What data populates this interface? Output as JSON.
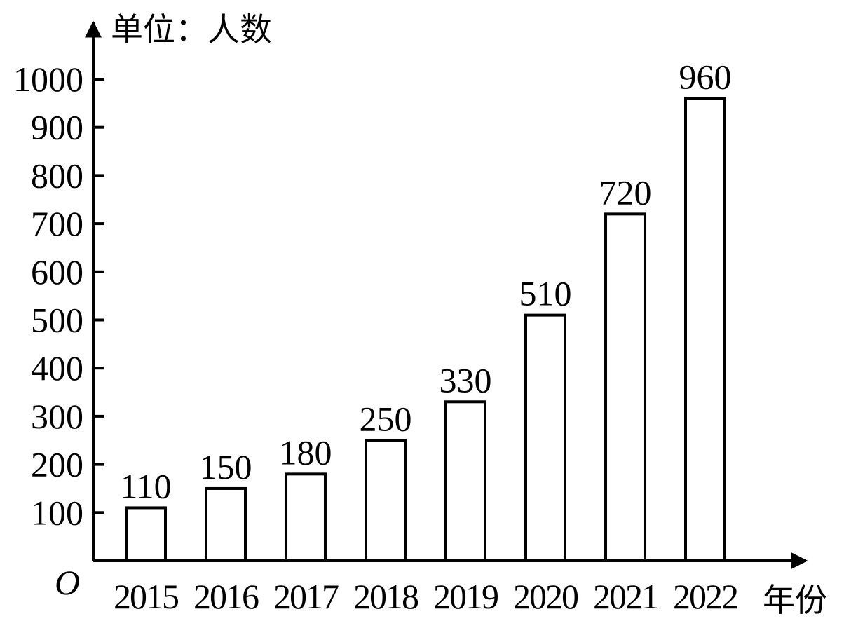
{
  "chart_data": {
    "type": "bar",
    "categories": [
      "2015",
      "2016",
      "2017",
      "2018",
      "2019",
      "2020",
      "2021",
      "2022"
    ],
    "values": [
      110,
      150,
      180,
      250,
      330,
      510,
      720,
      960
    ],
    "value_labels": [
      "110",
      "150",
      "180",
      "250",
      "330",
      "510",
      "720",
      "960"
    ],
    "ylabel": "单位：人数",
    "xlabel": "年份",
    "origin_label": "O",
    "ylim": [
      0,
      1000
    ],
    "yticks": [
      100,
      200,
      300,
      400,
      500,
      600,
      700,
      800,
      900,
      1000
    ],
    "grid": false,
    "bar_fill": "#ffffff",
    "bar_stroke": "#000000"
  }
}
